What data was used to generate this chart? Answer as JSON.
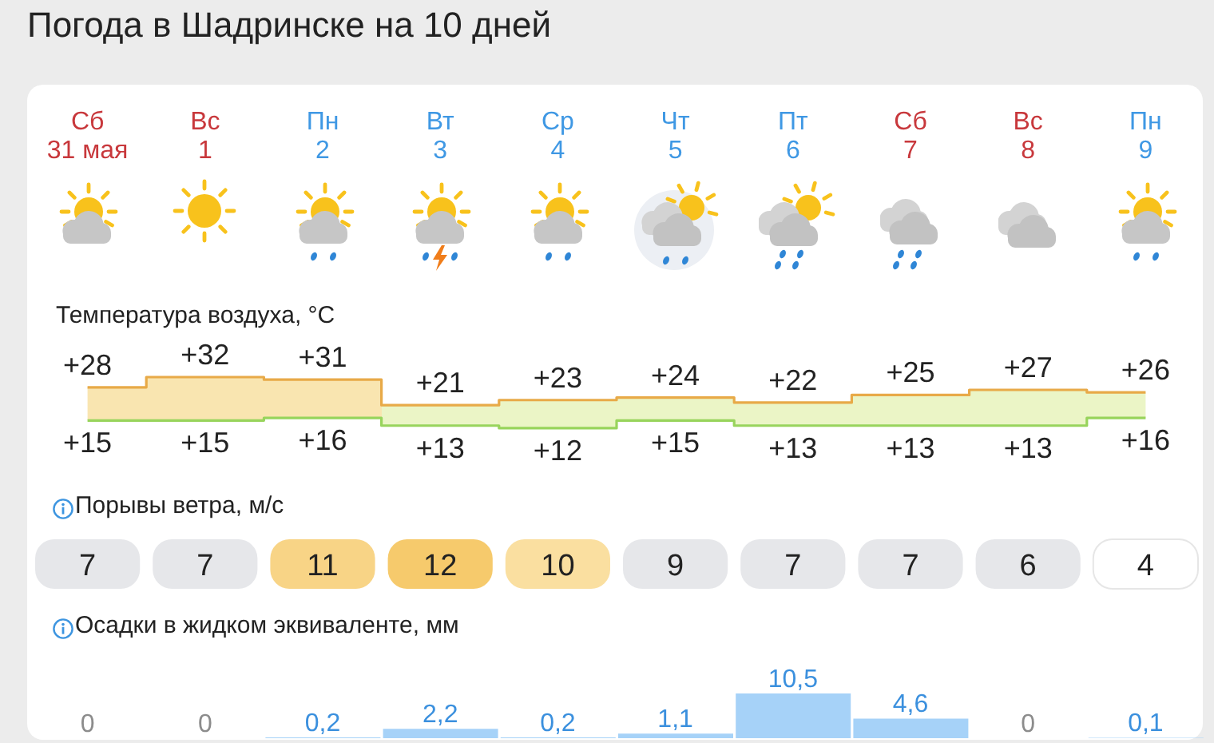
{
  "chart_data": [
    {
      "type": "step",
      "title": "Погода в Шадринске на 10 дней",
      "subtitle": "Температура воздуха, °C",
      "categories": [
        "Сб 31 мая",
        "Вс 1",
        "Пн 2",
        "Вт 3",
        "Ср 4",
        "Чт 5",
        "Пт 6",
        "Сб 7",
        "Вс 8",
        "Пн 9"
      ],
      "series": [
        {
          "color": "#e8aa48",
          "values": [
            28,
            32,
            31,
            21,
            23,
            24,
            22,
            25,
            27,
            26
          ],
          "value_labels": [
            "+28",
            "+32",
            "+31",
            "+21",
            "+23",
            "+24",
            "+22",
            "+25",
            "+27",
            "+26"
          ],
          "lower": [
            15,
            15,
            16,
            13,
            12,
            15,
            13,
            13,
            13,
            16
          ],
          "upper": [
            28,
            32,
            31,
            21,
            23,
            24,
            22,
            25,
            27,
            26
          ]
        },
        {
          "color": "#98d45c",
          "values": [
            15,
            15,
            16,
            13,
            12,
            15,
            13,
            13,
            13,
            16
          ],
          "value_labels": [
            "+15",
            "+15",
            "+16",
            "+13",
            "+12",
            "+15",
            "+13",
            "+13",
            "+13",
            "+16"
          ]
        }
      ],
      "tick_labels": "x"
    },
    {
      "type": "other",
      "title": "Порывы ветра, м/с",
      "values": [
        7,
        7,
        11,
        12,
        10,
        9,
        7,
        7,
        6,
        4
      ],
      "data_labels": true
    },
    {
      "type": "bar",
      "title": "Осадки в жидком эквиваленте, мм",
      "categories": [
        null,
        null,
        null,
        null,
        null,
        null,
        null,
        null,
        null,
        null
      ],
      "values": [
        0,
        0,
        0.2,
        2.2,
        0.2,
        1.1,
        10.5,
        4.6,
        0,
        0.1
      ],
      "value_labels": [
        "0",
        "0",
        "0,2",
        "2,2",
        "0,2",
        "1,1",
        "10,5",
        "4,6",
        "0",
        "0,1"
      ],
      "color": "#a6d2f8"
    }
  ]
}
